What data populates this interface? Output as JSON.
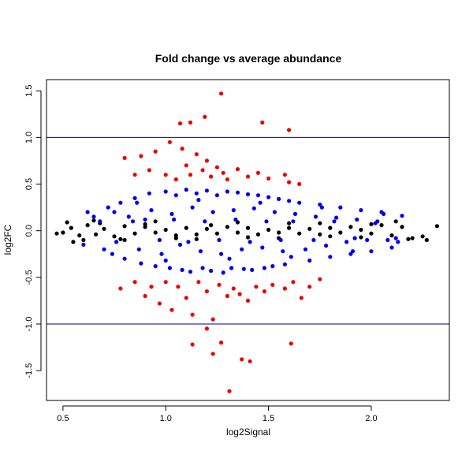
{
  "chart_data": {
    "type": "scatter",
    "title": "Fold change vs average abundance",
    "xlabel": "log2Signal",
    "ylabel": "log2FC",
    "xlim": [
      0.42,
      2.38
    ],
    "ylim": [
      -1.82,
      1.62
    ],
    "x_ticks": [
      "0.5",
      "1.0",
      "1.5",
      "2.0"
    ],
    "y_ticks": [
      "1.5",
      "1.0",
      "0.5",
      "0.0",
      "-0.5",
      "-1.0",
      "-1.5"
    ],
    "hlines": [
      1.0,
      -1.0
    ],
    "grid": false,
    "legend": "none",
    "colors": {
      "black": "#000000",
      "blue": "#0000ee",
      "red": "#ee0000",
      "threshold_line": "#000080"
    },
    "series": [
      {
        "color": "#000000",
        "x": [
          0.47,
          0.5,
          0.54,
          0.58,
          0.62,
          0.66,
          0.7,
          0.75,
          0.8,
          0.85,
          0.9,
          0.95,
          1.0,
          1.05,
          1.1,
          1.15,
          1.2,
          1.25,
          1.3,
          1.35,
          1.4,
          1.45,
          1.5,
          1.55,
          1.6,
          1.65,
          1.7,
          1.75,
          1.8,
          1.85,
          1.9,
          1.95,
          2.0,
          2.05,
          2.1,
          2.15,
          2.2,
          2.25,
          2.32,
          0.52,
          0.6,
          0.68,
          0.78,
          0.9,
          1.05,
          1.22,
          1.4,
          1.6,
          1.8,
          2.0,
          2.18,
          0.55,
          0.65,
          0.8,
          0.95,
          1.15,
          1.35,
          1.55,
          1.75,
          1.95,
          2.12,
          2.27
        ],
        "y": [
          -0.03,
          -0.02,
          0.03,
          -0.05,
          0.06,
          -0.04,
          0.02,
          -0.06,
          0.05,
          -0.03,
          0.04,
          -0.02,
          0.01,
          -0.05,
          0.03,
          -0.04,
          0.02,
          -0.03,
          0.04,
          -0.02,
          0.03,
          -0.04,
          0.01,
          -0.02,
          0.03,
          -0.03,
          0.02,
          -0.04,
          0.03,
          -0.02,
          0.04,
          0.01,
          -0.03,
          0.06,
          -0.05,
          0.04,
          -0.08,
          -0.06,
          0.05,
          0.09,
          -0.1,
          0.08,
          -0.09,
          0.07,
          -0.08,
          0.06,
          -0.07,
          0.08,
          -0.06,
          0.07,
          -0.09,
          -0.12,
          0.11,
          -0.1,
          0.1,
          -0.09,
          0.09,
          -0.08,
          0.08,
          -0.07,
          0.1,
          -0.1
        ]
      },
      {
        "color": "#0000ee",
        "x": [
          0.72,
          0.78,
          0.8,
          0.85,
          0.88,
          0.92,
          0.95,
          1.0,
          1.02,
          1.05,
          1.08,
          1.1,
          1.12,
          1.15,
          1.18,
          1.2,
          1.22,
          1.25,
          1.28,
          1.3,
          1.32,
          1.35,
          1.38,
          1.4,
          1.42,
          1.45,
          1.48,
          1.5,
          1.52,
          1.55,
          1.58,
          1.6,
          1.65,
          1.7,
          1.75,
          1.8,
          1.85,
          1.9,
          1.95,
          2.0,
          2.05,
          2.1,
          2.15,
          0.65,
          0.7,
          0.75,
          0.82,
          0.87,
          0.93,
          0.98,
          1.03,
          1.07,
          1.13,
          1.17,
          1.23,
          1.27,
          1.33,
          1.37,
          1.43,
          1.47,
          1.53,
          1.57,
          1.63,
          1.68,
          1.73,
          1.78,
          1.83,
          1.88,
          1.93,
          1.98,
          2.03,
          2.08,
          2.13,
          0.6,
          0.68,
          0.76,
          0.84,
          0.9,
          0.97,
          1.04,
          1.11,
          1.19,
          1.26,
          1.34,
          1.41,
          1.49,
          1.56,
          1.62,
          1.72,
          1.82,
          1.92,
          2.02,
          2.12,
          0.62,
          0.74,
          0.86,
          1.0,
          1.16,
          1.31,
          1.46,
          1.61,
          1.76,
          1.91,
          2.06
        ],
        "y": [
          0.25,
          0.3,
          -0.3,
          0.35,
          -0.35,
          0.4,
          -0.38,
          0.42,
          -0.4,
          0.38,
          -0.42,
          0.44,
          -0.44,
          0.4,
          -0.4,
          0.43,
          -0.43,
          0.38,
          -0.45,
          0.42,
          -0.4,
          0.41,
          -0.41,
          0.39,
          -0.42,
          0.38,
          -0.4,
          0.36,
          -0.38,
          0.34,
          -0.36,
          0.32,
          0.3,
          -0.32,
          0.28,
          -0.28,
          0.25,
          -0.25,
          0.22,
          -0.22,
          0.2,
          -0.18,
          0.16,
          0.15,
          -0.2,
          0.2,
          0.15,
          -0.2,
          0.22,
          -0.25,
          0.18,
          -0.15,
          0.25,
          -0.22,
          0.2,
          -0.25,
          0.22,
          -0.2,
          0.24,
          -0.18,
          0.2,
          -0.22,
          0.18,
          -0.2,
          0.15,
          -0.16,
          0.14,
          -0.12,
          0.12,
          -0.1,
          0.1,
          -0.1,
          -0.12,
          -0.15,
          0.1,
          -0.12,
          0.1,
          0.12,
          -0.1,
          0.12,
          -0.12,
          0.1,
          -0.1,
          0.12,
          -0.12,
          0.1,
          -0.1,
          0.1,
          -0.1,
          0.1,
          -0.08,
          0.08,
          -0.08,
          0.2,
          -0.25,
          0.3,
          -0.32,
          0.33,
          -0.3,
          0.3,
          -0.28,
          0.25,
          -0.22,
          0.18
        ]
      },
      {
        "color": "#ee0000",
        "x": [
          0.8,
          0.85,
          0.88,
          0.92,
          0.95,
          1.0,
          1.02,
          1.05,
          1.08,
          1.1,
          1.12,
          1.15,
          1.18,
          1.2,
          1.22,
          1.25,
          1.28,
          1.3,
          1.35,
          1.4,
          1.45,
          1.5,
          1.58,
          1.6,
          1.65,
          0.78,
          0.85,
          0.9,
          0.93,
          0.97,
          1.0,
          1.03,
          1.06,
          1.1,
          1.13,
          1.16,
          1.2,
          1.23,
          1.26,
          1.3,
          1.33,
          1.36,
          1.4,
          1.44,
          1.48,
          1.52,
          1.58,
          1.62,
          1.66,
          1.7,
          1.75,
          1.07,
          1.12,
          1.19,
          1.27,
          1.47,
          1.6,
          1.13,
          1.2,
          1.23,
          1.27,
          1.31,
          1.37,
          1.41,
          1.61
        ],
        "y": [
          0.78,
          0.6,
          0.8,
          0.65,
          0.85,
          0.6,
          0.95,
          0.55,
          0.88,
          0.7,
          0.6,
          0.82,
          0.65,
          0.75,
          0.58,
          0.68,
          0.62,
          0.55,
          0.66,
          0.58,
          0.62,
          0.56,
          0.6,
          0.52,
          0.5,
          -0.62,
          -0.55,
          -0.7,
          -0.6,
          -0.78,
          -0.55,
          -0.85,
          -0.6,
          -0.72,
          -0.9,
          -0.55,
          -0.65,
          -0.95,
          -0.58,
          -0.7,
          -0.62,
          -0.68,
          -0.75,
          -0.6,
          -0.65,
          -0.58,
          -0.62,
          -0.55,
          -0.72,
          -0.6,
          -0.52,
          1.15,
          1.16,
          1.22,
          1.47,
          1.16,
          1.08,
          -1.22,
          -1.05,
          -1.32,
          -1.2,
          -1.72,
          -1.38,
          -1.4,
          -1.21
        ]
      }
    ]
  }
}
